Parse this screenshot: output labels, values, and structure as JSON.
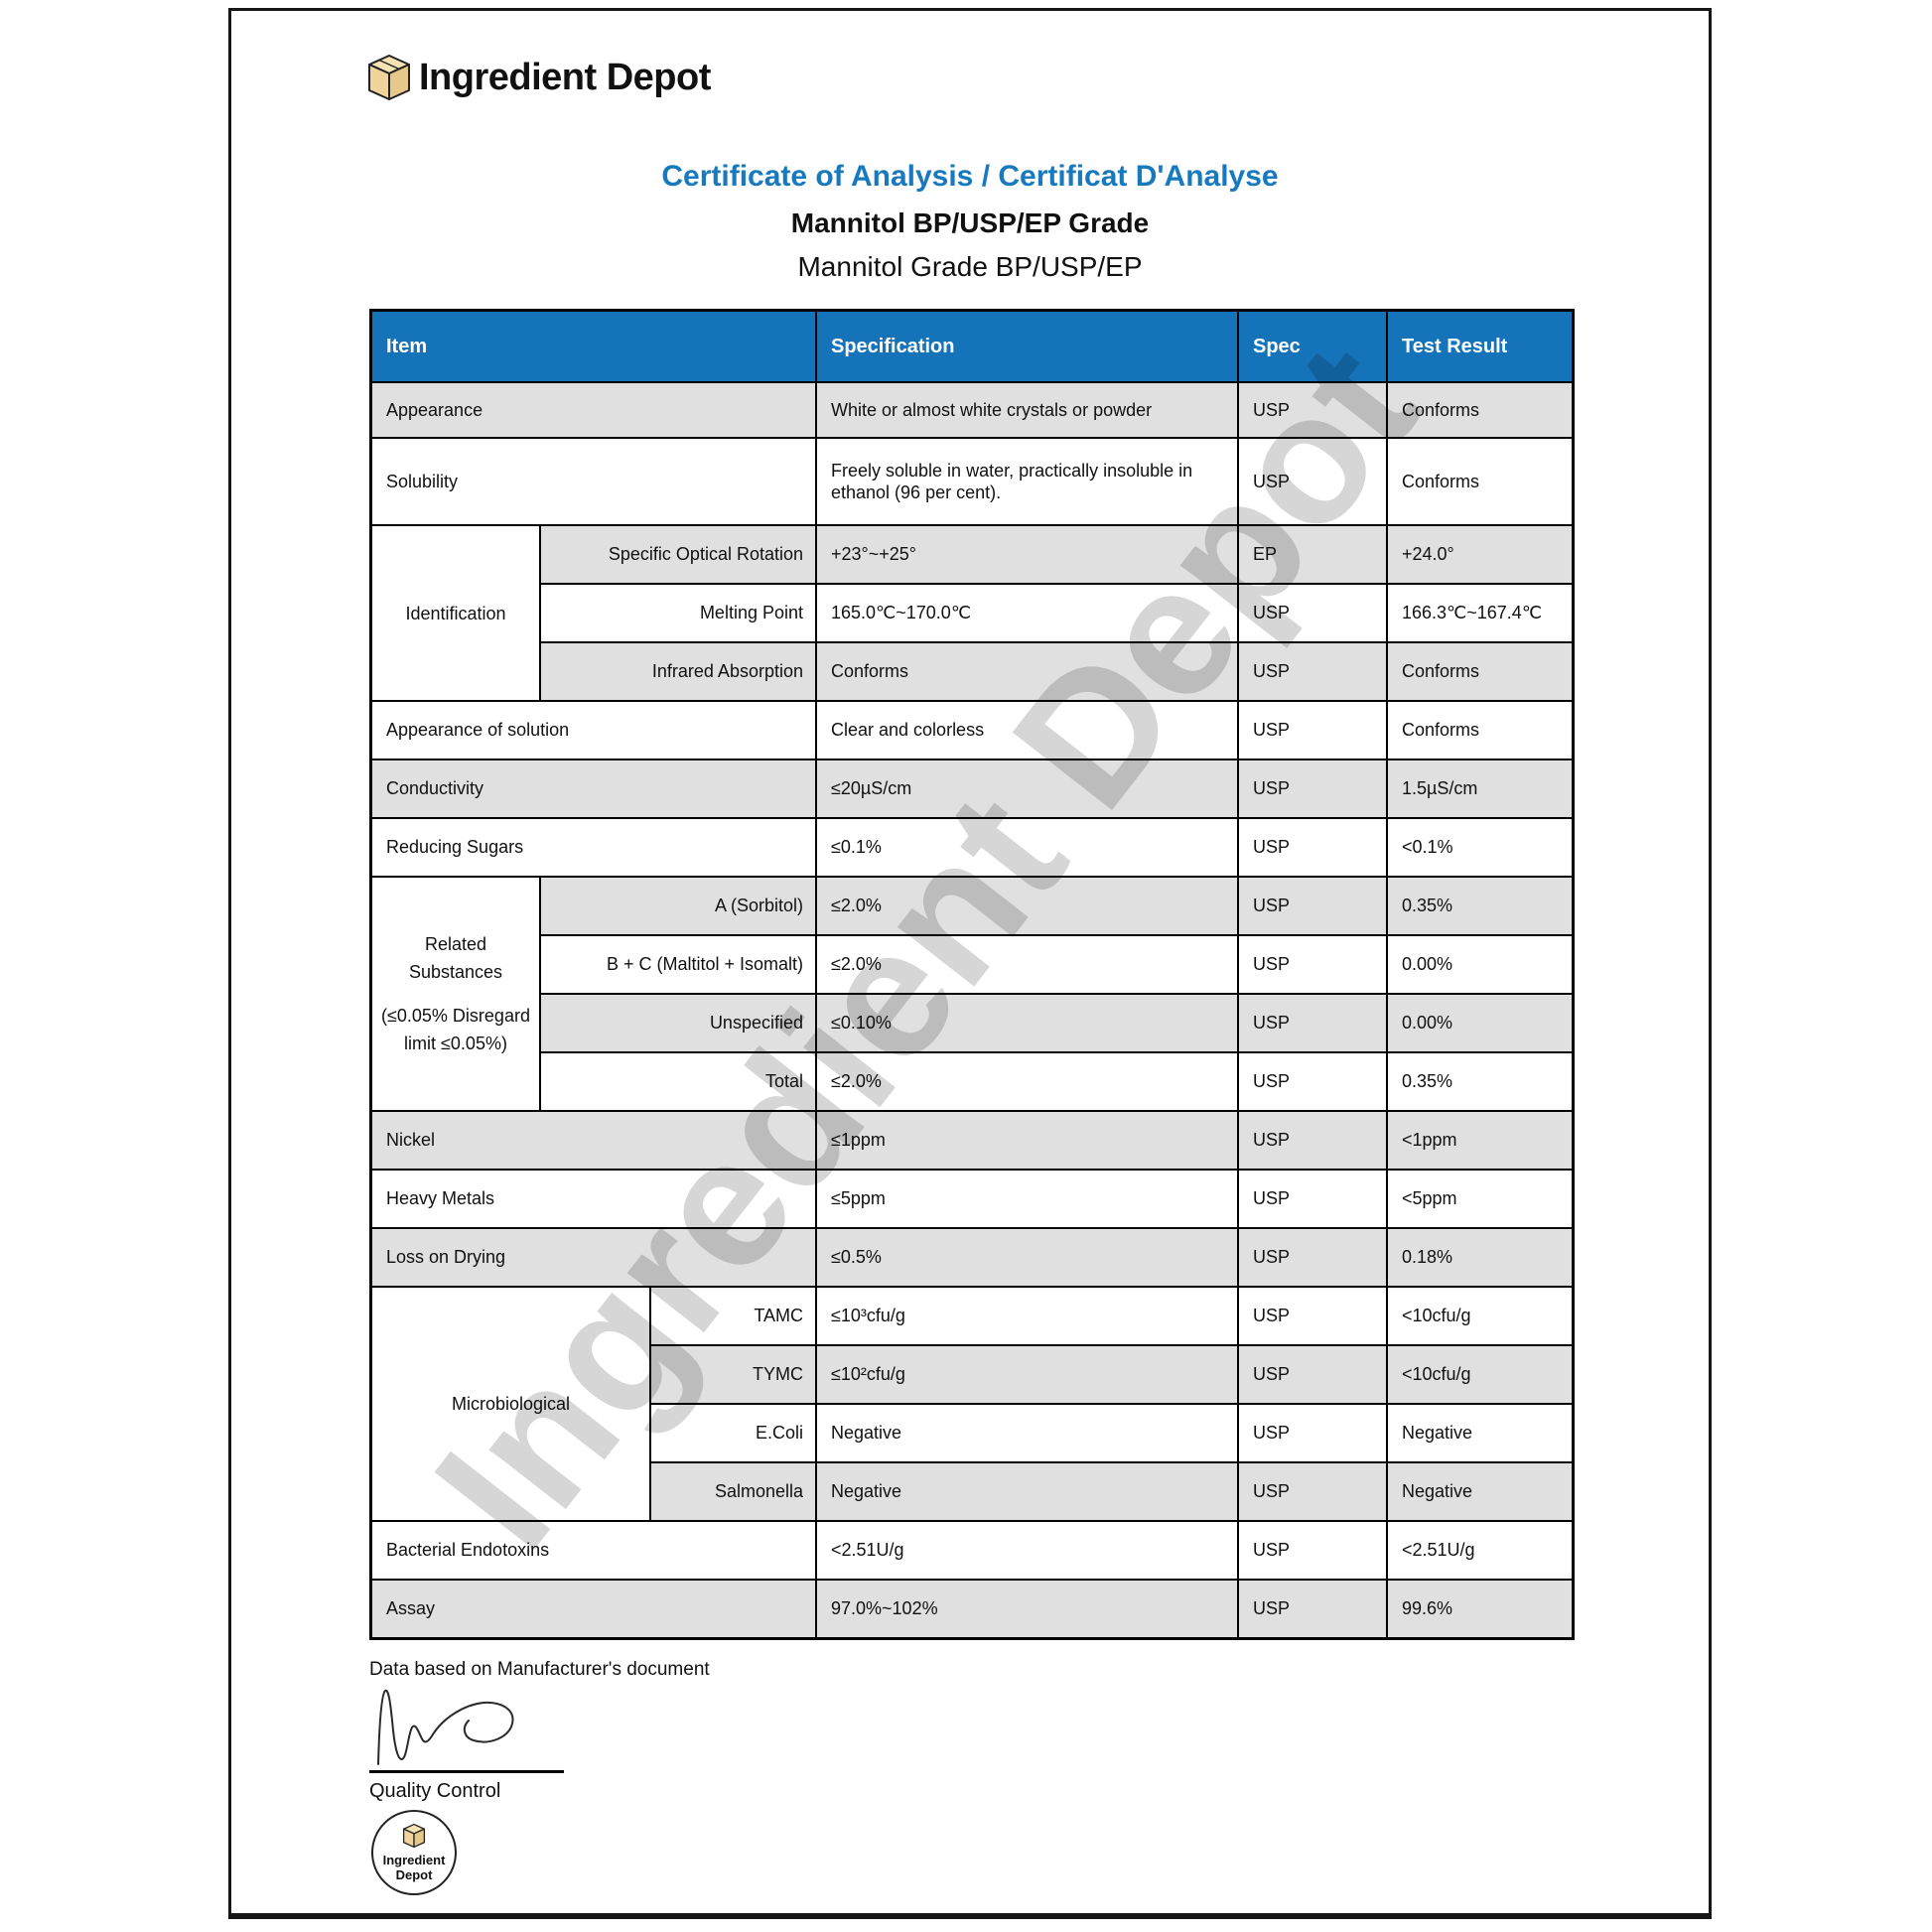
{
  "brand": {
    "name": "Ingredient Depot",
    "watermark": "Ingredient Depot"
  },
  "header": {
    "title": "Certificate of Analysis / Certificat D'Analyse",
    "product_name": "Mannitol BP/USP/EP Grade",
    "product_grade": "Mannitol Grade BP/USP/EP"
  },
  "table": {
    "columns": [
      "Item",
      "Specification",
      "Spec",
      "Test Result"
    ],
    "rows": [
      {
        "item": "Appearance",
        "specification": "White or almost white crystals or powder",
        "spec": "USP",
        "result": "Conforms"
      },
      {
        "item": "Solubility",
        "specification": "Freely soluble in water, practically insoluble in ethanol (96 per cent).",
        "spec": "USP",
        "result": "Conforms"
      },
      {
        "group": {
          "label": "Identification",
          "span": 3,
          "style": "narrow"
        },
        "sub": true,
        "item": "Specific Optical Rotation",
        "specification": "+23°~+25°",
        "spec": "EP",
        "result": "+24.0°"
      },
      {
        "sub": true,
        "item": "Melting Point",
        "specification": "165.0℃~170.0℃",
        "spec": "USP",
        "result": "166.3℃~167.4℃"
      },
      {
        "sub": true,
        "item": "Infrared Absorption",
        "specification": "Conforms",
        "spec": "USP",
        "result": "Conforms"
      },
      {
        "item": "Appearance of solution",
        "specification": "Clear and colorless",
        "spec": "USP",
        "result": "Conforms"
      },
      {
        "item": "Conductivity",
        "specification": "≤20µS/cm",
        "spec": "USP",
        "result": "1.5µS/cm"
      },
      {
        "item": "Reducing Sugars",
        "specification": "≤0.1%",
        "spec": "USP",
        "result": "<0.1%"
      },
      {
        "group": {
          "label": "Related Substances",
          "label2": "(≤0.05% Disregard limit ≤0.05%)",
          "span": 4,
          "style": "narrow"
        },
        "sub": true,
        "item": "A (Sorbitol)",
        "specification": "≤2.0%",
        "spec": "USP",
        "result": "0.35%"
      },
      {
        "sub": true,
        "item": "B + C (Maltitol + Isomalt)",
        "specification": "≤2.0%",
        "spec": "USP",
        "result": "0.00%"
      },
      {
        "sub": true,
        "item": "Unspecified",
        "specification": "≤0.10%",
        "spec": "USP",
        "result": "0.00%"
      },
      {
        "sub": true,
        "item": "Total",
        "specification": "≤2.0%",
        "spec": "USP",
        "result": "0.35%"
      },
      {
        "item": "Nickel",
        "specification": "≤1ppm",
        "spec": "USP",
        "result": "<1ppm"
      },
      {
        "item": "Heavy Metals",
        "specification": "≤5ppm",
        "spec": "USP",
        "result": "<5ppm"
      },
      {
        "item": "Loss on Drying",
        "specification": "≤0.5%",
        "spec": "USP",
        "result": "0.18%"
      },
      {
        "group": {
          "label": "Microbiological",
          "span": 4,
          "style": "wide"
        },
        "sub": true,
        "item": "TAMC",
        "specification": "≤10³cfu/g",
        "spec": "USP",
        "result": "<10cfu/g"
      },
      {
        "sub": true,
        "item": "TYMC",
        "specification": "≤10²cfu/g",
        "spec": "USP",
        "result": "<10cfu/g"
      },
      {
        "sub": true,
        "item": "E.Coli",
        "specification": "Negative",
        "spec": "USP",
        "result": "Negative"
      },
      {
        "sub": true,
        "item": "Salmonella",
        "specification": "Negative",
        "spec": "USP",
        "result": "Negative"
      },
      {
        "item": "Bacterial Endotoxins",
        "specification": "<2.51U/g",
        "spec": "USP",
        "result": "<2.51U/g"
      },
      {
        "item": "Assay",
        "specification": "97.0%~102%",
        "spec": "USP",
        "result": "99.6%"
      }
    ]
  },
  "footer": {
    "note": "Data based on Manufacturer's document",
    "signature_label": "Quality Control",
    "stamp_line1": "Ingredient",
    "stamp_line2": "Depot"
  },
  "colors": {
    "header_blue": "#1573ba",
    "title_blue": "#1779be",
    "row_gray": "#e0e0e0",
    "watermark_gray": "rgba(0,0,0,0.16)",
    "box_tan": "#f0d49c"
  }
}
